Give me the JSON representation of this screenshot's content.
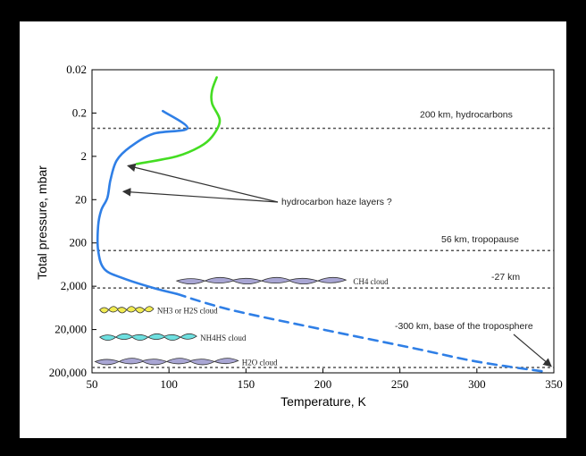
{
  "chart_data": {
    "type": "line",
    "xlabel": "Temperature, K",
    "ylabel": "Total pressure, mbar",
    "xlim": [
      50,
      350
    ],
    "xticks": [
      50,
      100,
      150,
      200,
      250,
      300,
      350
    ],
    "y_scale": "log",
    "ylim": [
      0.02,
      200000
    ],
    "yticks": [
      0.02,
      0.2,
      2,
      20,
      200,
      2000,
      20000,
      200000
    ],
    "ytick_labels": [
      "0.02",
      "0.2",
      "2",
      "20",
      "200",
      "2,000",
      "20,000",
      "200,000"
    ],
    "series": [
      {
        "color": "#2f7fe6",
        "style": "solid",
        "points": [
          [
            96,
            0.18
          ],
          [
            112,
            0.45
          ],
          [
            90,
            0.6
          ],
          [
            75,
            1.2
          ],
          [
            66,
            2.5
          ],
          [
            62,
            7
          ],
          [
            60,
            18
          ],
          [
            56,
            35
          ],
          [
            54,
            80
          ],
          [
            54,
            300
          ],
          [
            58,
            800
          ],
          [
            70,
            1300
          ],
          [
            90,
            2200
          ],
          [
            105,
            3000
          ]
        ]
      },
      {
        "color": "#2f7fe6",
        "style": "dashed",
        "points": [
          [
            105,
            3000
          ],
          [
            140,
            7000
          ],
          [
            200,
            20000
          ],
          [
            260,
            55000
          ],
          [
            300,
            110000
          ],
          [
            345,
            190000
          ]
        ]
      },
      {
        "color": "#44dd22",
        "style": "solid",
        "points": [
          [
            79,
            3
          ],
          [
            105,
            2
          ],
          [
            120,
            1.2
          ],
          [
            128,
            0.7
          ],
          [
            133,
            0.3
          ],
          [
            128,
            0.12
          ],
          [
            128,
            0.06
          ],
          [
            131,
            0.03
          ]
        ]
      }
    ],
    "reference_lines": [
      {
        "pressure": 0.45,
        "label": "200 km, hydrocarbons"
      },
      {
        "pressure": 300,
        "label": "56 km, tropopause"
      },
      {
        "pressure": 2200,
        "label": "-27 km"
      },
      {
        "pressure": 150000,
        "label": ""
      }
    ],
    "annotations": [
      {
        "text": "hydrocarbon haze layers ?",
        "arrow_targets": [
          [
            71,
            3.3
          ],
          [
            68,
            13
          ]
        ]
      },
      {
        "text": "-300 km, base of the troposphere",
        "arrow_target": [
          350,
          170000
        ]
      }
    ],
    "clouds": [
      {
        "label": "CH4 cloud",
        "x_range": [
          105,
          215
        ],
        "pressure": 1500,
        "color": "#a9a6d4"
      },
      {
        "label": "NH3 or H2S cloud",
        "x_range": [
          55,
          90
        ],
        "pressure": 7000,
        "color": "#f2ec52"
      },
      {
        "label": "NH4HS cloud",
        "x_range": [
          55,
          118
        ],
        "pressure": 30000,
        "color": "#6ee0e0"
      },
      {
        "label": "H2O cloud",
        "x_range": [
          52,
          145
        ],
        "pressure": 110000,
        "color": "#a9a6d4"
      }
    ]
  }
}
